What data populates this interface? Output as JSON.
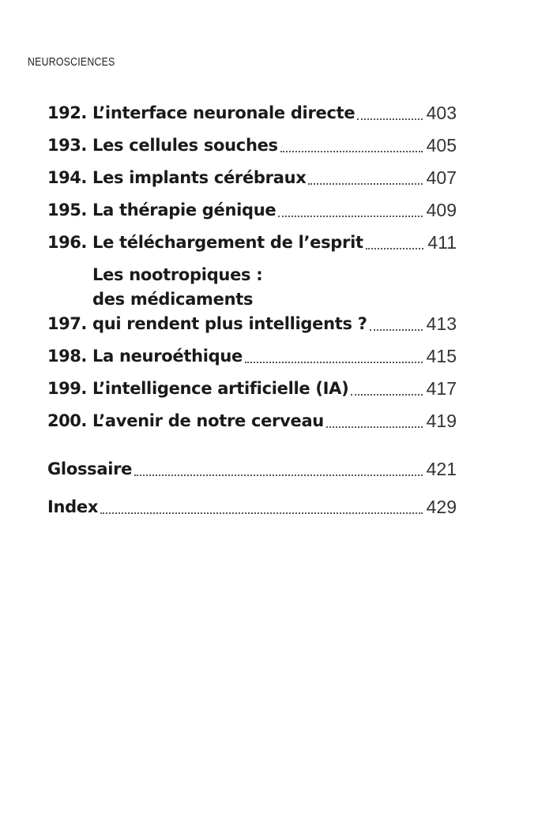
{
  "running_head": "NEUROSCIENCES",
  "entries": [
    {
      "number": "192.",
      "title": [
        "L’interface neuronale directe"
      ],
      "page": "403"
    },
    {
      "number": "193.",
      "title": [
        "Les cellules souches"
      ],
      "page": "405"
    },
    {
      "number": "194.",
      "title": [
        "Les implants cérébraux"
      ],
      "page": "407"
    },
    {
      "number": "195.",
      "title": [
        "La thérapie génique"
      ],
      "page": "409"
    },
    {
      "number": "196.",
      "title": [
        "Le téléchargement de l’esprit"
      ],
      "page": "411"
    },
    {
      "number": "197.",
      "title": [
        "Les nootropiques :",
        "des médicaments",
        "qui rendent plus intelligents ?"
      ],
      "page": "413"
    },
    {
      "number": "198.",
      "title": [
        "La neuroéthique"
      ],
      "page": "415"
    },
    {
      "number": "199.",
      "title": [
        "L’intelligence artificielle (IA)"
      ],
      "page": "417"
    },
    {
      "number": "200.",
      "title": [
        "L’avenir de notre cerveau"
      ],
      "page": "419"
    }
  ],
  "back_matter": [
    {
      "title": "Glossaire",
      "page": "421"
    },
    {
      "title": "Index",
      "page": "429"
    }
  ]
}
